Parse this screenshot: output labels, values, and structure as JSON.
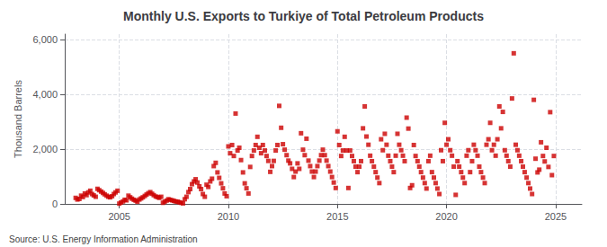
{
  "chart_data": {
    "type": "scatter",
    "title": "Monthly U.S. Exports to Turkiye of Total Petroleum Products",
    "ylabel": "Thousand Barrels",
    "annotations": [
      "Source: U.S. Energy Information Administration"
    ],
    "color": "#CC0000",
    "marker": "square",
    "grid": true,
    "xlim": [
      2002.5,
      2026.2
    ],
    "xticks": [
      2005,
      2010,
      2015,
      2020,
      2025
    ],
    "ylim": [
      0,
      6200
    ],
    "yticks": [
      0,
      {
        "value": 2000,
        "label": "2,000"
      },
      {
        "value": 4000,
        "label": "4,000"
      },
      {
        "value": 6000,
        "label": "6,000"
      }
    ],
    "x": [
      2003.0,
      2003.08,
      2003.17,
      2003.25,
      2003.33,
      2003.42,
      2003.5,
      2003.58,
      2003.67,
      2003.75,
      2003.83,
      2003.92,
      2004.0,
      2004.08,
      2004.17,
      2004.25,
      2004.33,
      2004.42,
      2004.5,
      2004.58,
      2004.67,
      2004.75,
      2004.83,
      2004.92,
      2005.0,
      2005.08,
      2005.17,
      2005.25,
      2005.33,
      2005.42,
      2005.5,
      2005.58,
      2005.67,
      2005.75,
      2005.83,
      2005.92,
      2006.0,
      2006.08,
      2006.17,
      2006.25,
      2006.33,
      2006.42,
      2006.5,
      2006.58,
      2006.67,
      2006.75,
      2006.83,
      2006.92,
      2007.0,
      2007.08,
      2007.17,
      2007.25,
      2007.33,
      2007.42,
      2007.5,
      2007.58,
      2007.67,
      2007.75,
      2007.83,
      2007.92,
      2008.0,
      2008.08,
      2008.17,
      2008.25,
      2008.33,
      2008.42,
      2008.5,
      2008.58,
      2008.67,
      2008.75,
      2008.83,
      2008.92,
      2009.0,
      2009.08,
      2009.17,
      2009.25,
      2009.33,
      2009.42,
      2009.5,
      2009.58,
      2009.67,
      2009.75,
      2009.83,
      2009.92,
      2010.0,
      2010.08,
      2010.17,
      2010.25,
      2010.33,
      2010.42,
      2010.5,
      2010.58,
      2010.67,
      2010.75,
      2010.83,
      2010.92,
      2011.0,
      2011.08,
      2011.17,
      2011.25,
      2011.33,
      2011.42,
      2011.5,
      2011.58,
      2011.67,
      2011.75,
      2011.83,
      2011.92,
      2012.0,
      2012.08,
      2012.17,
      2012.25,
      2012.33,
      2012.42,
      2012.5,
      2012.58,
      2012.67,
      2012.75,
      2012.83,
      2012.92,
      2013.0,
      2013.08,
      2013.17,
      2013.25,
      2013.33,
      2013.42,
      2013.5,
      2013.58,
      2013.67,
      2013.75,
      2013.83,
      2013.92,
      2014.0,
      2014.08,
      2014.17,
      2014.25,
      2014.33,
      2014.42,
      2014.5,
      2014.58,
      2014.67,
      2014.75,
      2014.83,
      2014.92,
      2015.0,
      2015.08,
      2015.17,
      2015.25,
      2015.33,
      2015.42,
      2015.5,
      2015.58,
      2015.67,
      2015.75,
      2015.83,
      2015.92,
      2016.0,
      2016.08,
      2016.17,
      2016.25,
      2016.33,
      2016.42,
      2016.5,
      2016.58,
      2016.67,
      2016.75,
      2016.83,
      2016.92,
      2017.0,
      2017.08,
      2017.17,
      2017.25,
      2017.33,
      2017.42,
      2017.5,
      2017.58,
      2017.67,
      2017.75,
      2017.83,
      2017.92,
      2018.0,
      2018.08,
      2018.17,
      2018.25,
      2018.33,
      2018.42,
      2018.5,
      2018.58,
      2018.67,
      2018.75,
      2018.83,
      2018.92,
      2019.0,
      2019.08,
      2019.17,
      2019.25,
      2019.33,
      2019.42,
      2019.5,
      2019.58,
      2019.67,
      2019.75,
      2019.83,
      2019.92,
      2020.0,
      2020.08,
      2020.17,
      2020.25,
      2020.33,
      2020.42,
      2020.5,
      2020.58,
      2020.67,
      2020.75,
      2020.83,
      2020.92,
      2021.0,
      2021.08,
      2021.17,
      2021.25,
      2021.33,
      2021.42,
      2021.5,
      2021.58,
      2021.67,
      2021.75,
      2021.83,
      2021.92,
      2022.0,
      2022.08,
      2022.17,
      2022.25,
      2022.33,
      2022.42,
      2022.5,
      2022.58,
      2022.67,
      2022.75,
      2022.83,
      2022.92,
      2023.0,
      2023.08,
      2023.17,
      2023.25,
      2023.33,
      2023.42,
      2023.5,
      2023.58,
      2023.67,
      2023.75,
      2023.83,
      2023.92,
      2024.0,
      2024.08,
      2024.17,
      2024.25,
      2024.33,
      2024.42,
      2024.5,
      2024.58,
      2024.67,
      2024.75,
      2024.83,
      2024.92
    ],
    "values": [
      220,
      160,
      180,
      300,
      250,
      380,
      320,
      420,
      480,
      360,
      310,
      260,
      550,
      500,
      450,
      400,
      350,
      300,
      260,
      240,
      280,
      360,
      420,
      480,
      10,
      50,
      90,
      150,
      130,
      300,
      240,
      190,
      150,
      120,
      80,
      160,
      200,
      240,
      290,
      340,
      390,
      430,
      370,
      320,
      270,
      250,
      220,
      260,
      40,
      80,
      120,
      170,
      150,
      130,
      110,
      90,
      80,
      60,
      40,
      20,
      170,
      260,
      430,
      540,
      720,
      820,
      900,
      780,
      640,
      540,
      360,
      260,
      700,
      620,
      820,
      920,
      1380,
      1500,
      1150,
      950,
      750,
      570,
      380,
      280,
      2100,
      1850,
      2150,
      1750,
      3300,
      1950,
      2050,
      1600,
      1150,
      750,
      570,
      380,
      1350,
      1750,
      1950,
      2150,
      2450,
      2050,
      1850,
      2150,
      1950,
      1750,
      1570,
      1170,
      1380,
      1570,
      1950,
      2150,
      3580,
      2780,
      2180,
      1980,
      1780,
      1580,
      1480,
      1280,
      980,
      1180,
      1480,
      1280,
      2580,
      1980,
      1780,
      2380,
      1580,
      1380,
      1180,
      980,
      1180,
      1380,
      1580,
      1780,
      1980,
      1780,
      1580,
      1380,
      1180,
      980,
      780,
      580,
      2650,
      2150,
      1750,
      1950,
      2450,
      1950,
      580,
      1950,
      1750,
      1560,
      1360,
      1160,
      1360,
      1560,
      2760,
      3560,
      2460,
      2160,
      1760,
      1560,
      1360,
      1160,
      960,
      760,
      2360,
      1960,
      2560,
      2160,
      1760,
      1560,
      1360,
      1160,
      1760,
      2560,
      2160,
      1960,
      1760,
      1560,
      3150,
      2750,
      580,
      680,
      2150,
      1750,
      1560,
      1360,
      1160,
      960,
      760,
      560,
      1560,
      1760,
      1160,
      960,
      760,
      560,
      360,
      1960,
      1560,
      2960,
      2160,
      2360,
      1960,
      1760,
      1360,
      330,
      1560,
      1360,
      1160,
      960,
      760,
      1760,
      1960,
      1160,
      1560,
      2160,
      1960,
      1760,
      1360,
      1160,
      960,
      760,
      2160,
      2360,
      2960,
      1960,
      2160,
      1760,
      2360,
      3560,
      2760,
      3360,
      1960,
      1760,
      1560,
      1360,
      3850,
      5500,
      2160,
      1960,
      1760,
      1560,
      1360,
      1160,
      960,
      760,
      560,
      360,
      3800,
      1650,
      1150,
      1250,
      2250,
      1750,
      1550,
      2050,
      1350,
      3350,
      1050,
      1750
    ]
  }
}
